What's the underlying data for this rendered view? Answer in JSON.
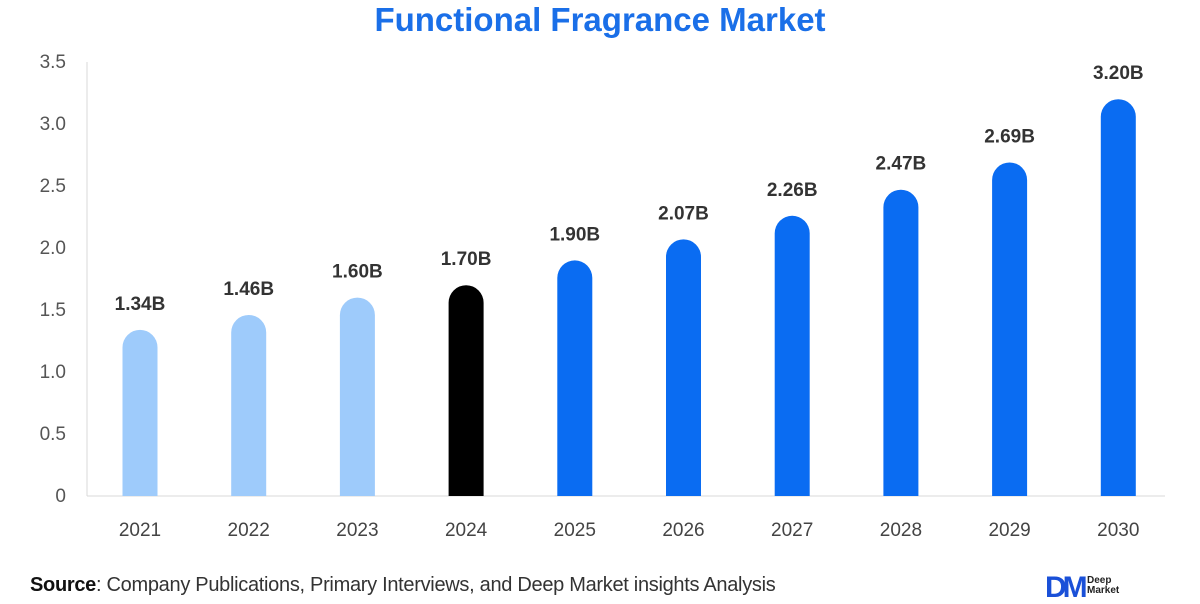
{
  "chart_data": {
    "type": "bar",
    "title": "Functional Fragrance Market",
    "categories": [
      "2021",
      "2022",
      "2023",
      "2024",
      "2025",
      "2026",
      "2027",
      "2028",
      "2029",
      "2030"
    ],
    "values": [
      1.34,
      1.46,
      1.6,
      1.7,
      1.9,
      2.07,
      2.26,
      2.47,
      2.69,
      3.2
    ],
    "data_labels": [
      "1.34B",
      "1.46B",
      "1.60B",
      "1.70B",
      "1.90B",
      "2.07B",
      "2.26B",
      "2.47B",
      "2.69B",
      "3.20B"
    ],
    "bar_colors": [
      "#9ecbfb",
      "#9ecbfb",
      "#9ecbfb",
      "#000000",
      "#0a6cf2",
      "#0a6cf2",
      "#0a6cf2",
      "#0a6cf2",
      "#0a6cf2",
      "#0a6cf2"
    ],
    "yticks": [
      "0",
      "0.5",
      "1.0",
      "1.5",
      "2.0",
      "2.5",
      "3.0",
      "3.5"
    ],
    "ylim": [
      0,
      3.5
    ],
    "xlabel": "",
    "ylabel": "",
    "grid": false
  },
  "footer": {
    "source_label": "Source",
    "source_text": ": Company Publications, Primary Interviews, and Deep Market insights Analysis",
    "logo_mark": "DM",
    "logo_line1": "Deep",
    "logo_line2": "Market"
  }
}
